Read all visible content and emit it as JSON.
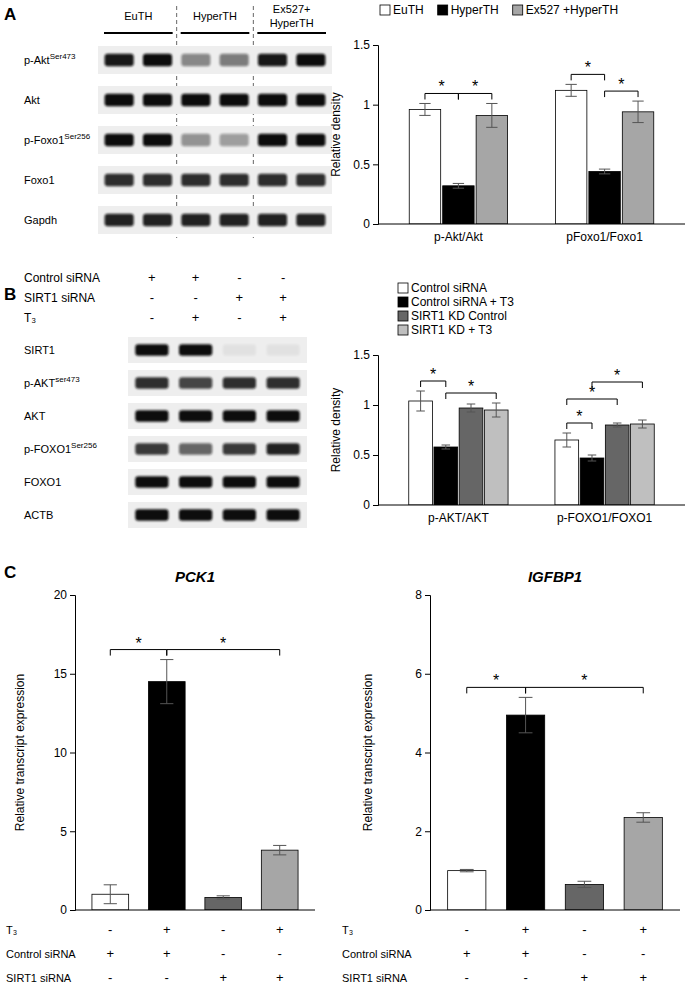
{
  "panel_labels": [
    "A",
    "B",
    "C"
  ],
  "blots": [
    {
      "groups": [
        [
          "EuTH"
        ],
        [
          "HyperTH"
        ],
        [
          "Ex527+",
          "HyperTH"
        ]
      ],
      "rows": [
        {
          "label": "p-Akt",
          "sup": "Ser473",
          "bands": [
            0.95,
            1,
            0.45,
            0.5,
            0.95,
            1
          ]
        },
        {
          "label": "Akt",
          "bands": [
            1,
            1,
            1,
            1,
            1,
            1
          ]
        },
        {
          "label": "p-Foxo1",
          "sup": "Ser256",
          "bands": [
            1,
            1,
            0.4,
            0.35,
            1,
            1
          ]
        },
        {
          "label": "Foxo1",
          "bands": [
            0.85,
            0.85,
            0.85,
            0.85,
            0.85,
            0.85
          ]
        },
        {
          "label": "Gapdh",
          "bands": [
            0.9,
            0.9,
            0.9,
            0.9,
            0.9,
            0.9
          ]
        }
      ]
    },
    {
      "conditions": [
        {
          "label": "Control siRNA",
          "signs": [
            "+",
            "+",
            "-",
            "-"
          ]
        },
        {
          "label": "SIRT1 siRNA",
          "signs": [
            "-",
            "-",
            "+",
            "+"
          ]
        },
        {
          "label": "T₃",
          "signs": [
            "-",
            "+",
            "-",
            "+"
          ]
        }
      ],
      "rows": [
        {
          "label": "SIRT1",
          "bands": [
            1,
            1,
            0.05,
            0.05
          ]
        },
        {
          "label": "p-AKT",
          "sup": "ser473",
          "bands": [
            0.85,
            0.75,
            0.85,
            0.85
          ]
        },
        {
          "label": "AKT",
          "bands": [
            1,
            1,
            1,
            1
          ]
        },
        {
          "label": "p-FOXO1",
          "sup": "Ser256",
          "bands": [
            0.8,
            0.6,
            0.8,
            0.9
          ]
        },
        {
          "label": "FOXO1",
          "bands": [
            1,
            1,
            1,
            1
          ]
        },
        {
          "label": "ACTB",
          "bands": [
            1,
            1,
            1,
            1
          ]
        }
      ]
    }
  ],
  "chart_data": [
    {
      "type": "bar",
      "y_label": "Relative density",
      "categories": [
        "p-Akt/Akt",
        "pFoxo1/Foxo1"
      ],
      "series": [
        {
          "name": "EuTH",
          "color": "#ffffff",
          "values": [
            0.96,
            1.12
          ],
          "errors": [
            0.05,
            0.05
          ]
        },
        {
          "name": "HyperTH",
          "color": "#000000",
          "values": [
            0.32,
            0.44
          ],
          "errors": [
            0.02,
            0.02
          ]
        },
        {
          "name": "Ex527 +HyperTH",
          "color": "#a6a6a6",
          "values": [
            0.91,
            0.94
          ],
          "errors": [
            0.1,
            0.09
          ]
        }
      ],
      "ylim": [
        0,
        1.5
      ],
      "yticks": [
        0,
        0.5,
        1,
        1.5
      ],
      "grid": false,
      "legend": "top",
      "significance": [
        {
          "category": 0,
          "from": 0,
          "to": 1,
          "label": "*"
        },
        {
          "category": 0,
          "from": 1,
          "to": 2,
          "label": "*"
        },
        {
          "category": 1,
          "from": 0,
          "to": 1,
          "label": "*"
        },
        {
          "category": 1,
          "from": 1,
          "to": 2,
          "label": "*"
        }
      ]
    },
    {
      "type": "bar",
      "y_label": "Relative density",
      "categories": [
        "p-AKT/AKT",
        "p-FOXO1/FOXO1"
      ],
      "series": [
        {
          "name": "Control siRNA",
          "color": "#ffffff",
          "values": [
            1.04,
            0.65
          ],
          "errors": [
            0.1,
            0.07
          ]
        },
        {
          "name": "Control siRNA + T3",
          "color": "#000000",
          "values": [
            0.58,
            0.47
          ],
          "errors": [
            0.02,
            0.03
          ]
        },
        {
          "name": "SIRT1 KD Control",
          "color": "#666666",
          "values": [
            0.97,
            0.8
          ],
          "errors": [
            0.04,
            0.02
          ]
        },
        {
          "name": "SIRT1 KD + T3",
          "color": "#bfbfbf",
          "values": [
            0.95,
            0.81
          ],
          "errors": [
            0.07,
            0.04
          ]
        }
      ],
      "ylim": [
        0,
        1.5
      ],
      "yticks": [
        0,
        0.5,
        1,
        1.5
      ],
      "grid": false,
      "legend": "top-left",
      "significance": [
        {
          "category": 0,
          "from": 0,
          "to": 1,
          "label": "*"
        },
        {
          "category": 0,
          "from": 1,
          "to": 3,
          "label": "*"
        },
        {
          "category": 1,
          "from": 0,
          "to": 1,
          "label": "*"
        },
        {
          "category": 1,
          "from": 0,
          "to": 2,
          "label": "*"
        },
        {
          "category": 1,
          "from": 1,
          "to": 3,
          "label": "*"
        }
      ]
    },
    {
      "type": "bar",
      "title": "PCK1",
      "y_label": "Relative transcript expression",
      "categories": [
        null,
        null,
        null,
        null
      ],
      "values": [
        1.0,
        14.5,
        0.8,
        3.8
      ],
      "errors": [
        0.6,
        1.4,
        0.1,
        0.3
      ],
      "colors": [
        "#ffffff",
        "#000000",
        "#666666",
        "#a6a6a6"
      ],
      "ylim": [
        0,
        20
      ],
      "yticks": [
        0,
        5,
        10,
        15,
        20
      ],
      "grid": false,
      "conditions": [
        {
          "label": "T₃",
          "signs": [
            "-",
            "+",
            "-",
            "+"
          ]
        },
        {
          "label": "Control siRNA",
          "signs": [
            "+",
            "+",
            "-",
            "-"
          ]
        },
        {
          "label": "SIRT1 siRNA",
          "signs": [
            "-",
            "-",
            "+",
            "+"
          ]
        }
      ],
      "significance": [
        {
          "from": 0,
          "to": 1,
          "label": "*"
        },
        {
          "from": 1,
          "to": 3,
          "label": "*"
        }
      ]
    },
    {
      "type": "bar",
      "title": "IGFBP1",
      "y_label": "Relative transcript expression",
      "categories": [
        null,
        null,
        null,
        null
      ],
      "values": [
        1.0,
        4.95,
        0.65,
        2.35
      ],
      "errors": [
        0.03,
        0.45,
        0.08,
        0.12
      ],
      "colors": [
        "#ffffff",
        "#000000",
        "#666666",
        "#a6a6a6"
      ],
      "ylim": [
        0,
        8
      ],
      "yticks": [
        0,
        2,
        4,
        6,
        8
      ],
      "grid": false,
      "conditions": [
        {
          "label": "T₃",
          "signs": [
            "-",
            "+",
            "-",
            "+"
          ]
        },
        {
          "label": "Control siRNA",
          "signs": [
            "+",
            "+",
            "-",
            "-"
          ]
        },
        {
          "label": "SIRT1 siRNA",
          "signs": [
            "-",
            "-",
            "+",
            "+"
          ]
        }
      ],
      "significance": [
        {
          "from": 0,
          "to": 1,
          "label": "*"
        },
        {
          "from": 1,
          "to": 3,
          "label": "*"
        }
      ]
    }
  ]
}
